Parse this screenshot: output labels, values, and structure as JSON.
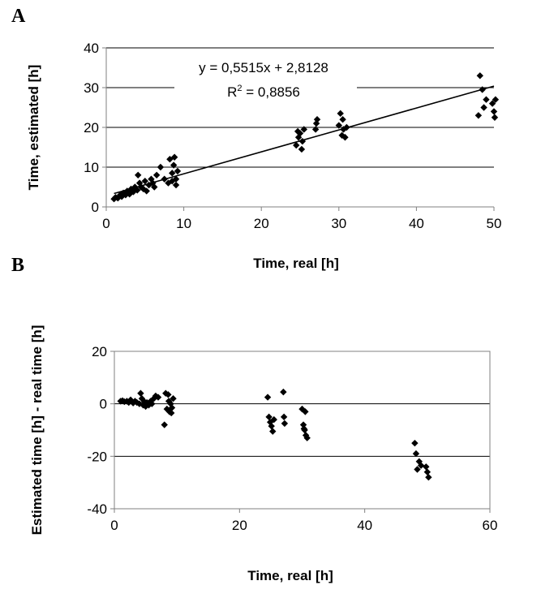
{
  "chart_data": [
    {
      "panel": "A",
      "type": "scatter",
      "xlabel": "Time, real [h]",
      "ylabel": "Time, estimated [h]",
      "xlim": [
        0,
        50
      ],
      "ylim": [
        0,
        40
      ],
      "xticks": [
        0,
        10,
        20,
        30,
        40,
        50
      ],
      "yticks": [
        0,
        10,
        20,
        30,
        40
      ],
      "grid": "horizontal",
      "equation": "y = 0,5515x + 2,8128",
      "r2_label": "R",
      "r2_sup": "2",
      "r2_value": " = 0,8856",
      "trendline": {
        "slope": 0.5515,
        "intercept": 2.8128,
        "x_range": [
          1,
          50
        ]
      },
      "points": [
        [
          1,
          2
        ],
        [
          1.2,
          2.4
        ],
        [
          1.5,
          2.2
        ],
        [
          1.8,
          3
        ],
        [
          2,
          2.6
        ],
        [
          2.2,
          3.5
        ],
        [
          2.5,
          3
        ],
        [
          2.7,
          4
        ],
        [
          3,
          3.2
        ],
        [
          3.2,
          4.5
        ],
        [
          3.5,
          3.8
        ],
        [
          3.7,
          5
        ],
        [
          4,
          4.2
        ],
        [
          4.1,
          8
        ],
        [
          4.3,
          6
        ],
        [
          4.5,
          5
        ],
        [
          4.8,
          4.5
        ],
        [
          5,
          6.5
        ],
        [
          5.2,
          4
        ],
        [
          5.5,
          5.5
        ],
        [
          5.8,
          7
        ],
        [
          6,
          6
        ],
        [
          6.2,
          5
        ],
        [
          6.5,
          8
        ],
        [
          7,
          10
        ],
        [
          7.5,
          7
        ],
        [
          8,
          6
        ],
        [
          8.2,
          12
        ],
        [
          8.5,
          6.5
        ],
        [
          8.8,
          12.5
        ],
        [
          9,
          5.5
        ],
        [
          9.2,
          9
        ],
        [
          8.5,
          8.5
        ],
        [
          9,
          7
        ],
        [
          8.7,
          10.5
        ],
        [
          24.5,
          15.5
        ],
        [
          24.8,
          17.5
        ],
        [
          25,
          18.5
        ],
        [
          25.2,
          14.5
        ],
        [
          25.5,
          19.5
        ],
        [
          24.7,
          19
        ],
        [
          25.3,
          16.5
        ],
        [
          27,
          19.5
        ],
        [
          27.1,
          21
        ],
        [
          27.2,
          22
        ],
        [
          30,
          20.5
        ],
        [
          30.2,
          23.5
        ],
        [
          30.4,
          18
        ],
        [
          30.6,
          19.5
        ],
        [
          30.8,
          17.5
        ],
        [
          30.5,
          22
        ],
        [
          31,
          20
        ],
        [
          48,
          23
        ],
        [
          48.2,
          33
        ],
        [
          48.5,
          29.5
        ],
        [
          48.7,
          25
        ],
        [
          49,
          27
        ],
        [
          49.8,
          26
        ],
        [
          50,
          24
        ],
        [
          50.1,
          22.5
        ],
        [
          50.2,
          27
        ]
      ]
    },
    {
      "panel": "B",
      "type": "scatter",
      "xlabel": "Time, real [h]",
      "ylabel": "Estimated time [h] - real time [h]",
      "xlim": [
        0,
        60
      ],
      "ylim": [
        -40,
        20
      ],
      "xticks": [
        0,
        20,
        40,
        60
      ],
      "yticks": [
        -40,
        -20,
        0,
        20
      ],
      "grid": "horizontal",
      "points": [
        [
          1,
          1
        ],
        [
          1.3,
          1.2
        ],
        [
          1.6,
          0.8
        ],
        [
          2,
          1
        ],
        [
          2.3,
          0.5
        ],
        [
          2.6,
          1.5
        ],
        [
          3,
          0.3
        ],
        [
          3.3,
          1
        ],
        [
          3.6,
          0.5
        ],
        [
          4,
          0
        ],
        [
          4.2,
          4
        ],
        [
          4.4,
          2
        ],
        [
          4.6,
          -0.5
        ],
        [
          4.8,
          0.8
        ],
        [
          5,
          -1
        ],
        [
          5.2,
          0.5
        ],
        [
          5.5,
          -0.5
        ],
        [
          5.8,
          1
        ],
        [
          6,
          0
        ],
        [
          6.3,
          2
        ],
        [
          6.6,
          3
        ],
        [
          7,
          2.5
        ],
        [
          8,
          -8
        ],
        [
          8.2,
          4
        ],
        [
          8.4,
          -2
        ],
        [
          8.6,
          3.5
        ],
        [
          8.8,
          -3
        ],
        [
          9,
          0
        ],
        [
          9.2,
          -1.5
        ],
        [
          9.4,
          2
        ],
        [
          9.1,
          -3.5
        ],
        [
          8.7,
          1
        ],
        [
          24.5,
          2.5
        ],
        [
          24.7,
          -5
        ],
        [
          24.9,
          -7
        ],
        [
          25.1,
          -8.5
        ],
        [
          25.3,
          -10.5
        ],
        [
          25.5,
          -6
        ],
        [
          27,
          4.5
        ],
        [
          27.1,
          -5
        ],
        [
          27.2,
          -7.5
        ],
        [
          30,
          -2
        ],
        [
          30.2,
          -8
        ],
        [
          30.4,
          -10
        ],
        [
          30.6,
          -12
        ],
        [
          30.8,
          -13
        ],
        [
          30.5,
          -3
        ],
        [
          30.3,
          -9.5
        ],
        [
          48,
          -15
        ],
        [
          48.2,
          -19
        ],
        [
          48.4,
          -25
        ],
        [
          48.7,
          -22
        ],
        [
          49,
          -23.5
        ],
        [
          49.8,
          -24
        ],
        [
          50,
          -26
        ],
        [
          50.2,
          -28
        ]
      ]
    }
  ]
}
